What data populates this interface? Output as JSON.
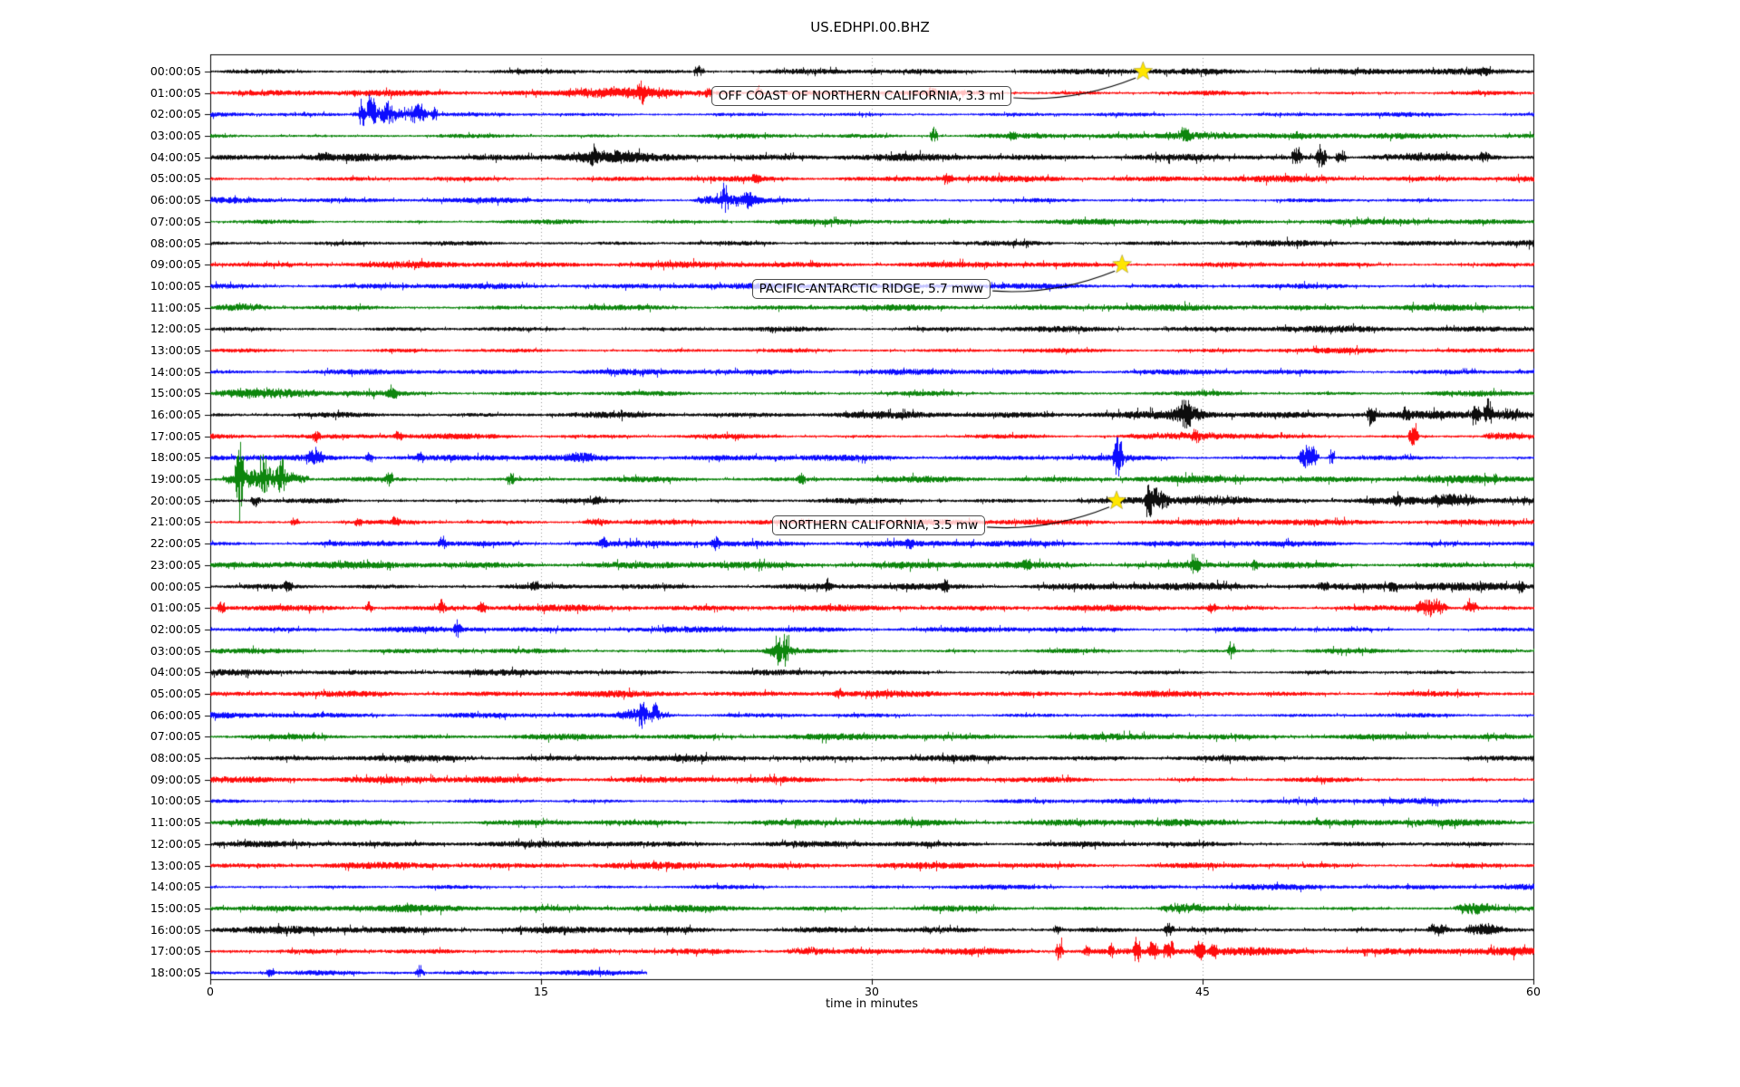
{
  "title": "US.EDHPI.00.BHZ",
  "chart_data": {
    "type": "line",
    "subtype": "seismogram-dayplot",
    "title": "US.EDHPI.00.BHZ",
    "xlabel": "time in minutes",
    "x_ticks": [
      0,
      15,
      30,
      45,
      60
    ],
    "xlim": [
      0,
      60
    ],
    "grid": "vertical dotted gridlines at 15, 30, 45",
    "legend": "none",
    "color_cycle": [
      "#000000",
      "#ff0000",
      "#0000ff",
      "#008000"
    ],
    "marker_color": "#ffe600",
    "row_labels": [
      "00:00:05",
      "01:00:05",
      "02:00:05",
      "03:00:05",
      "04:00:05",
      "05:00:05",
      "06:00:05",
      "07:00:05",
      "08:00:05",
      "09:00:05",
      "10:00:05",
      "11:00:05",
      "12:00:05",
      "13:00:05",
      "14:00:05",
      "15:00:05",
      "16:00:05",
      "17:00:05",
      "18:00:05",
      "19:00:05",
      "20:00:05",
      "21:00:05",
      "22:00:05",
      "23:00:05",
      "00:00:05",
      "01:00:05",
      "02:00:05",
      "03:00:05",
      "04:00:05",
      "05:00:05",
      "06:00:05",
      "07:00:05",
      "08:00:05",
      "09:00:05",
      "10:00:05",
      "11:00:05",
      "12:00:05",
      "13:00:05",
      "14:00:05",
      "15:00:05",
      "16:00:05",
      "17:00:05",
      "18:00:05"
    ],
    "row_span_minutes": 60,
    "last_row_end_minute": 19.8,
    "events": [
      {
        "label": "OFF COAST OF NORTHERN CALIFORNIA, 3.3 ml",
        "row": 0,
        "minute": 42.3
      },
      {
        "label": "PACIFIC-ANTARCTIC RIDGE, 5.7 mww",
        "row": 9,
        "minute": 41.35
      },
      {
        "label": "NORTHERN CALIFORNIA, 3.5 mw",
        "row": 20,
        "minute": 41.1
      }
    ],
    "base_amp_default": 2.6,
    "base_amp_overrides": {
      "2": 2.4,
      "4": 3.0,
      "6": 2.5,
      "7": 2.4,
      "8": 2.9,
      "10": 2.4,
      "12": 2.8,
      "14": 2.4,
      "15": 2.9,
      "16": 3.1,
      "18": 2.6,
      "19": 3.0,
      "20": 3.0,
      "22": 2.6,
      "23": 2.9,
      "24": 3.2,
      "26": 2.4,
      "27": 2.8,
      "28": 2.4,
      "30": 2.6,
      "31": 2.6,
      "33": 3.0,
      "34": 2.4,
      "35": 2.9,
      "36": 2.6,
      "37": 2.7,
      "38": 2.5,
      "39": 3.0,
      "40": 3.2,
      "41": 3.3,
      "42": 3.0
    },
    "bursts": [
      [
        0,
        21.9,
        22.4,
        7
      ],
      [
        0,
        57.4,
        58.1,
        4
      ],
      [
        1,
        15.6,
        21.3,
        5
      ],
      [
        1,
        19.35,
        19.75,
        10
      ],
      [
        1,
        22.4,
        22.8,
        5
      ],
      [
        1,
        24.65,
        25.05,
        6
      ],
      [
        1,
        32.5,
        32.9,
        5
      ],
      [
        2,
        6.3,
        10.3,
        8
      ],
      [
        2,
        6.7,
        7.0,
        14
      ],
      [
        2,
        7.1,
        7.5,
        20
      ],
      [
        2,
        7.7,
        8.3,
        12
      ],
      [
        2,
        9.0,
        9.9,
        9
      ],
      [
        2,
        10.0,
        10.3,
        7
      ],
      [
        3,
        32.6,
        33.0,
        9
      ],
      [
        3,
        36.2,
        36.6,
        5
      ],
      [
        3,
        42.8,
        47.2,
        5
      ],
      [
        3,
        44.0,
        44.4,
        7
      ],
      [
        4,
        4.7,
        5.5,
        4
      ],
      [
        4,
        15.5,
        20.2,
        5
      ],
      [
        4,
        17.2,
        17.6,
        9
      ],
      [
        4,
        49.0,
        49.5,
        9
      ],
      [
        4,
        50.1,
        50.6,
        16
      ],
      [
        4,
        51.0,
        51.5,
        8
      ],
      [
        4,
        52.0,
        57.0,
        3.5
      ],
      [
        4,
        57.5,
        58.1,
        6
      ],
      [
        5,
        24.5,
        25.0,
        4
      ],
      [
        5,
        33.2,
        33.7,
        6
      ],
      [
        6,
        21.8,
        25.3,
        7
      ],
      [
        6,
        23.1,
        23.5,
        10
      ],
      [
        6,
        24.2,
        24.6,
        8
      ],
      [
        9,
        41.1,
        41.6,
        3
      ],
      [
        11,
        0,
        3,
        3.5
      ],
      [
        15,
        0,
        5.5,
        4.5
      ],
      [
        15,
        8.0,
        8.5,
        5
      ],
      [
        16,
        43.3,
        45.3,
        8
      ],
      [
        16,
        44.0,
        44.5,
        13
      ],
      [
        16,
        52.4,
        52.9,
        14
      ],
      [
        16,
        54.0,
        54.4,
        6
      ],
      [
        16,
        57.2,
        57.6,
        12
      ],
      [
        16,
        57.7,
        58.2,
        13
      ],
      [
        16,
        58.2,
        59.6,
        6
      ],
      [
        17,
        4.6,
        5.0,
        6
      ],
      [
        17,
        8.3,
        8.7,
        7
      ],
      [
        17,
        41.0,
        48.0,
        4
      ],
      [
        17,
        44.5,
        44.9,
        6
      ],
      [
        17,
        54.3,
        54.8,
        16
      ],
      [
        17,
        57.6,
        59.6,
        5
      ],
      [
        18,
        4.3,
        5.2,
        10
      ],
      [
        18,
        7.0,
        7.4,
        6
      ],
      [
        18,
        9.3,
        9.7,
        6
      ],
      [
        18,
        16.0,
        17.6,
        4
      ],
      [
        18,
        40.9,
        41.4,
        26
      ],
      [
        18,
        49.3,
        50.3,
        18
      ],
      [
        18,
        50.7,
        51.0,
        8
      ],
      [
        19,
        0.45,
        4.6,
        12
      ],
      [
        19,
        1.1,
        1.5,
        42
      ],
      [
        19,
        2.2,
        2.6,
        18
      ],
      [
        19,
        3.0,
        3.4,
        14
      ],
      [
        19,
        7.9,
        8.3,
        8
      ],
      [
        19,
        13.4,
        13.8,
        7
      ],
      [
        19,
        26.6,
        27.0,
        7
      ],
      [
        20,
        1.8,
        2.3,
        6
      ],
      [
        20,
        17.3,
        17.7,
        5
      ],
      [
        20,
        42.3,
        43.6,
        13
      ],
      [
        20,
        42.4,
        42.7,
        17
      ],
      [
        20,
        43.6,
        47.5,
        4.5
      ],
      [
        20,
        53.6,
        54.0,
        5
      ],
      [
        20,
        55.3,
        57.7,
        6
      ],
      [
        21,
        3.6,
        4.0,
        5
      ],
      [
        21,
        6.5,
        6.9,
        4
      ],
      [
        21,
        8.2,
        8.6,
        5
      ],
      [
        21,
        16.8,
        18.3,
        4
      ],
      [
        22,
        10.3,
        10.7,
        5
      ],
      [
        22,
        17.6,
        18.0,
        6
      ],
      [
        22,
        22.7,
        23.1,
        6
      ],
      [
        22,
        31.5,
        31.9,
        5
      ],
      [
        23,
        0,
        8,
        3
      ],
      [
        23,
        36.8,
        37.2,
        4
      ],
      [
        23,
        44.4,
        44.9,
        10
      ],
      [
        23,
        47.2,
        47.5,
        6
      ],
      [
        24,
        3.3,
        3.7,
        6
      ],
      [
        24,
        14.5,
        14.9,
        5
      ],
      [
        24,
        27.8,
        28.2,
        4
      ],
      [
        24,
        33.1,
        33.5,
        7
      ],
      [
        24,
        50.3,
        50.7,
        5
      ],
      [
        24,
        53.4,
        53.8,
        6
      ],
      [
        24,
        59.2,
        59.6,
        7
      ],
      [
        25,
        0.3,
        0.7,
        7
      ],
      [
        25,
        7.0,
        7.4,
        5
      ],
      [
        25,
        10.3,
        10.7,
        7
      ],
      [
        25,
        12.1,
        12.5,
        6
      ],
      [
        25,
        45.2,
        45.6,
        5
      ],
      [
        25,
        54.6,
        56.2,
        11
      ],
      [
        25,
        56.8,
        57.5,
        9
      ],
      [
        26,
        11.0,
        11.4,
        7
      ],
      [
        27,
        25.0,
        26.7,
        8
      ],
      [
        27,
        25.6,
        25.9,
        12
      ],
      [
        27,
        25.95,
        26.25,
        18
      ],
      [
        27,
        46.1,
        46.5,
        9
      ],
      [
        29,
        28.3,
        28.7,
        5
      ],
      [
        30,
        18.3,
        21.1,
        7
      ],
      [
        30,
        19.4,
        19.8,
        12
      ],
      [
        30,
        20.0,
        20.4,
        8
      ],
      [
        35,
        0,
        9,
        2.5
      ],
      [
        39,
        42.9,
        45.3,
        6
      ],
      [
        39,
        56.3,
        58.3,
        7
      ],
      [
        40,
        38.2,
        38.6,
        5
      ],
      [
        40,
        43.2,
        43.7,
        6
      ],
      [
        40,
        55.1,
        56.3,
        7
      ],
      [
        40,
        56.9,
        58.6,
        7
      ],
      [
        41,
        26.0,
        28.2,
        4
      ],
      [
        41,
        38.3,
        38.7,
        13
      ],
      [
        41,
        39.6,
        39.9,
        7
      ],
      [
        41,
        40.7,
        41.0,
        9
      ],
      [
        41,
        41.8,
        42.2,
        16
      ],
      [
        41,
        42.5,
        43.0,
        8
      ],
      [
        41,
        43.2,
        43.7,
        11
      ],
      [
        41,
        44.6,
        45.1,
        12
      ],
      [
        41,
        45.3,
        45.7,
        7
      ],
      [
        42,
        2.5,
        2.9,
        5
      ],
      [
        42,
        9.3,
        9.7,
        6
      ]
    ]
  }
}
